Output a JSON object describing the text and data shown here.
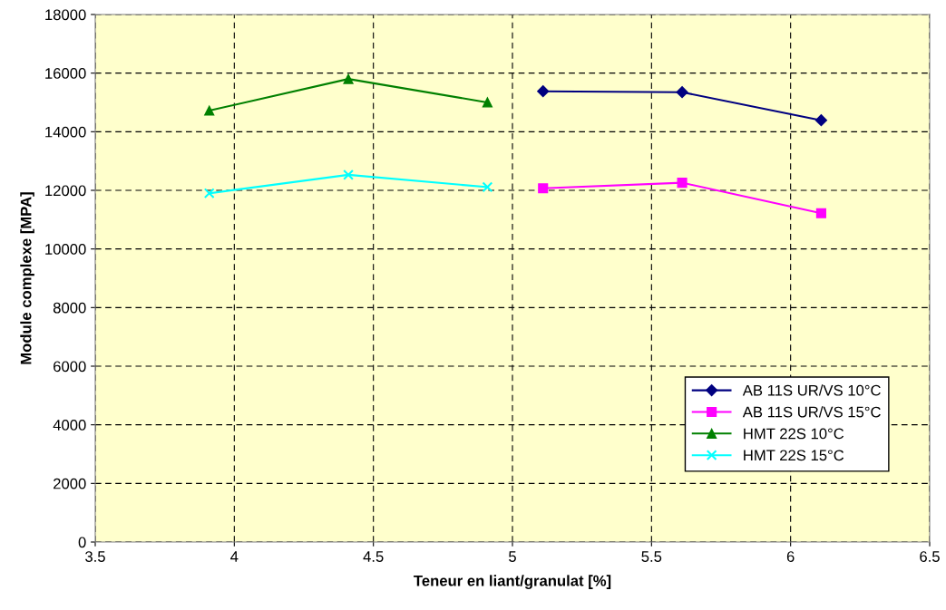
{
  "chart_data": {
    "type": "line",
    "xlabel": "Teneur en liant/granulat [%]",
    "ylabel": "Module complexe [MPA]",
    "xlim": [
      3.5,
      6.5
    ],
    "xticks": [
      3.5,
      4,
      4.5,
      5,
      5.5,
      6,
      6.5
    ],
    "ylim": [
      0,
      18000
    ],
    "yticks": [
      0,
      2000,
      4000,
      6000,
      8000,
      10000,
      12000,
      14000,
      16000,
      18000
    ],
    "grid": true,
    "legend": "bottom right",
    "series": [
      {
        "name": "AB 11S UR/VS 10°C",
        "color": "#000080",
        "marker": "diamond",
        "x": [
          5.11,
          5.61,
          6.11
        ],
        "values": [
          15380,
          15350,
          14390
        ]
      },
      {
        "name": "AB 11S UR/VS 15°C",
        "color": "#ff00ff",
        "marker": "square",
        "x": [
          5.11,
          5.61,
          6.11
        ],
        "values": [
          12070,
          12260,
          11220
        ]
      },
      {
        "name": "HMT 22S 10°C",
        "color": "#008000",
        "marker": "triangle",
        "x": [
          3.91,
          4.41,
          4.91
        ],
        "values": [
          14720,
          15800,
          15000
        ]
      },
      {
        "name": "HMT 22S 15°C",
        "color": "#00ffff",
        "marker": "cross",
        "x": [
          3.91,
          4.41,
          4.91
        ],
        "values": [
          11900,
          12530,
          12110
        ]
      }
    ]
  }
}
